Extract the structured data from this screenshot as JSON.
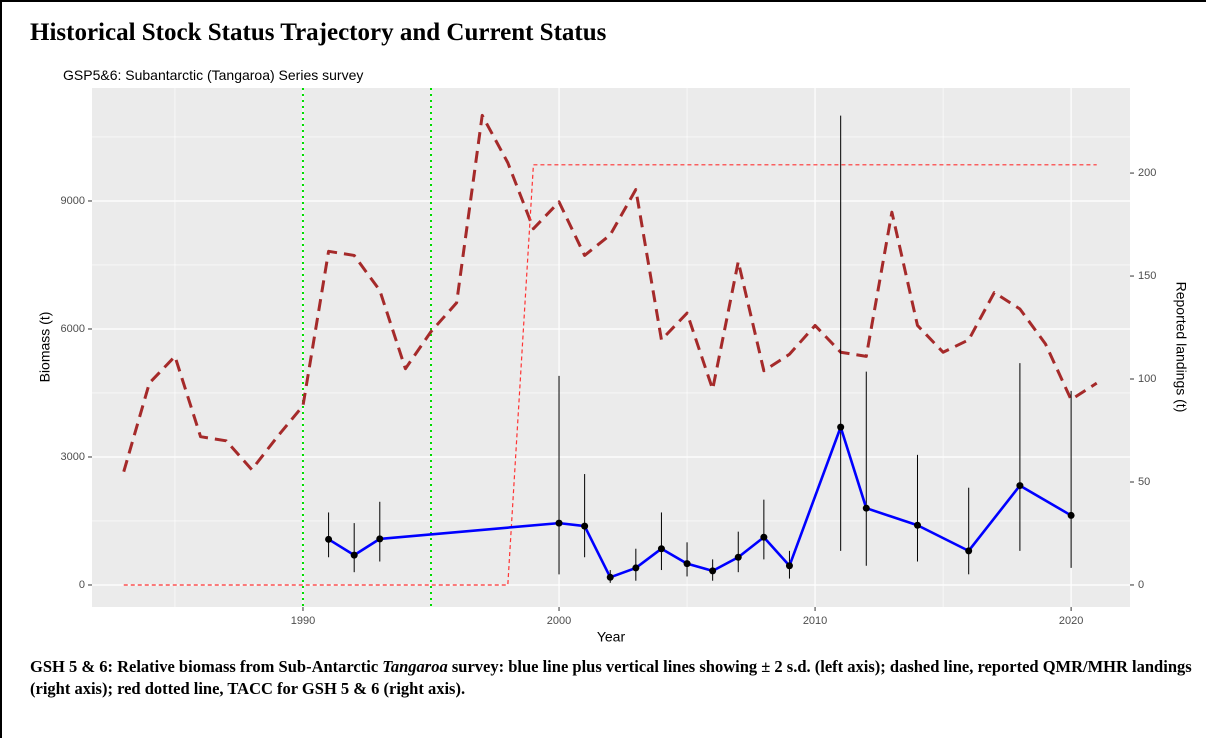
{
  "title": "Historical Stock Status Trajectory and Current Status",
  "chart_data": {
    "type": "line",
    "subtitle": "GSP5&6: Subantarctic (Tangaroa) Series survey",
    "x_label": "Year",
    "y_label": "Biomass (t)",
    "y2_label": "Reported landings (t)",
    "xlim": [
      1981.76,
      2022.3
    ],
    "xticks": [
      1990,
      2000,
      2010,
      2020
    ],
    "ylim": [
      -516,
      11648
    ],
    "yticks": [
      0,
      3000,
      6000,
      9000
    ],
    "y2lim": [
      -10.7,
      241.3
    ],
    "y2ticks": [
      0,
      50,
      100,
      150,
      200
    ],
    "grid": true,
    "reference_lines": {
      "x": [
        1990,
        1995
      ],
      "color": "#00dd00"
    },
    "series": [
      {
        "color": "#0000ff",
        "axis": "y",
        "style": "solid",
        "x": [
          1991,
          1992,
          1993,
          2000,
          2001,
          2002,
          2003,
          2004,
          2005,
          2006,
          2007,
          2008,
          2009,
          2011,
          2012,
          2014,
          2016,
          2018,
          2020
        ],
        "values": [
          1070,
          700,
          1080,
          1450,
          1380,
          180,
          400,
          850,
          500,
          330,
          650,
          1120,
          450,
          3700,
          1800,
          1400,
          800,
          2330,
          1630
        ],
        "lower": [
          650,
          300,
          550,
          250,
          650,
          50,
          100,
          350,
          200,
          100,
          300,
          600,
          150,
          800,
          450,
          550,
          250,
          800,
          400
        ],
        "upper": [
          1700,
          1450,
          1950,
          4900,
          2600,
          350,
          850,
          1700,
          1000,
          600,
          1250,
          2000,
          800,
          11000,
          5000,
          3050,
          2280,
          5200,
          4550
        ]
      },
      {
        "color": "#a52a2a",
        "axis": "y2",
        "style": "dashed",
        "x": [
          1983,
          1984,
          1985,
          1986,
          1987,
          1988,
          1989,
          1990,
          1991,
          1992,
          1993,
          1994,
          1995,
          1996,
          1997,
          1998,
          1999,
          2000,
          2001,
          2002,
          2003,
          2004,
          2005,
          2006,
          2007,
          2008,
          2009,
          2010,
          2011,
          2012,
          2013,
          2014,
          2015,
          2016,
          2017,
          2018,
          2019,
          2020,
          2021
        ],
        "values": [
          55,
          98,
          111,
          72,
          70,
          56,
          72,
          87,
          162,
          160,
          143,
          105,
          123,
          137,
          228,
          205,
          173,
          186,
          160,
          170,
          192,
          119,
          132,
          95,
          157,
          104,
          112,
          126,
          113,
          111,
          181,
          126,
          113,
          119,
          142,
          134,
          117,
          90,
          98
        ]
      },
      {
        "color": "#ff3333",
        "axis": "y2",
        "style": "dotted",
        "x": [
          1983,
          1998,
          1999,
          2021
        ],
        "values": [
          0,
          0,
          204,
          204
        ]
      }
    ]
  },
  "caption": [
    {
      "text": "GSH 5 & 6: Relative biomass from Sub-Antarctic ",
      "italic": false
    },
    {
      "text": "Tangaroa",
      "italic": true
    },
    {
      "text": " survey: blue line plus vertical lines showing ± 2 s.d. (left axis); dashed line, reported QMR/MHR landings (right axis); red dotted line, TACC for GSH 5 & 6 (right axis).",
      "italic": false
    }
  ]
}
